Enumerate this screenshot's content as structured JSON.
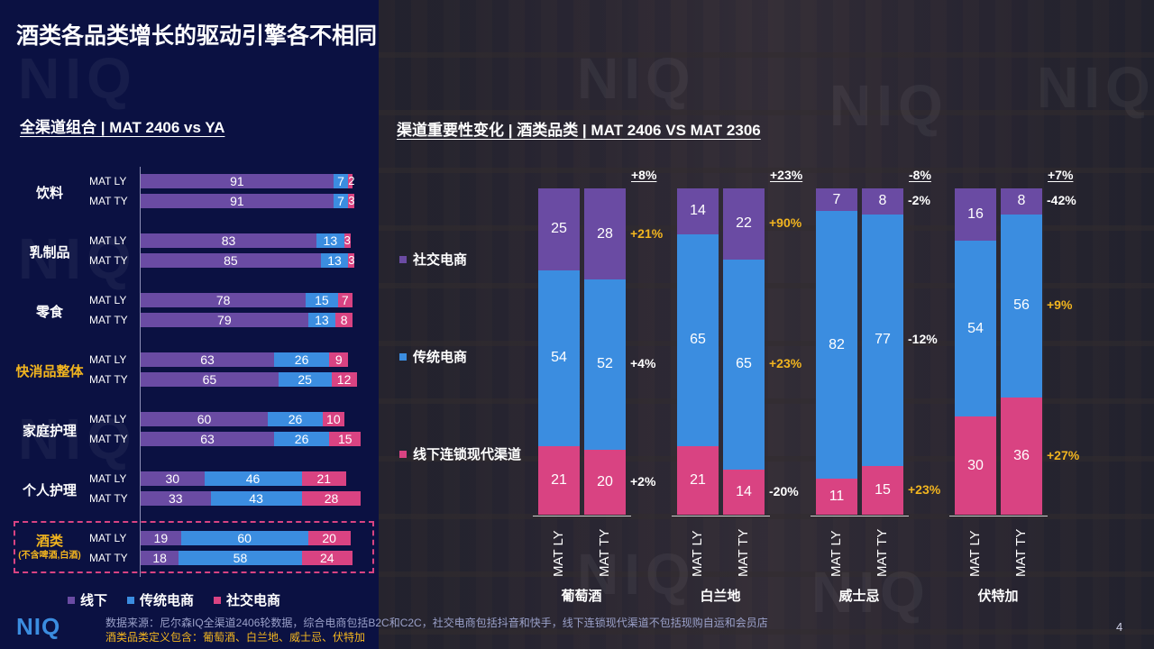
{
  "title": "酒类各品类增长的驱动引擎各不相同",
  "left_section_title": "全渠道组合 | MAT 2406 vs YA",
  "right_section_title": "渠道重要性变化 | 酒类品类 | MAT 2406 VS MAT 2306",
  "watermark": "NIQ",
  "logo": "NIQ",
  "page_number": "4",
  "source_note": "数据来源：尼尔森IQ全渠道2406轮数据，综合电商包括B2C和C2C，社交电商包括抖音和快手，线下连锁现代渠道不包括现购自运和会员店",
  "definition_note": "酒类品类定义包含：葡萄酒、白兰地、威士忌、伏特加",
  "colors": {
    "offline": "#6a4ba3",
    "traditional_ecom": "#3b8de0",
    "social_ecom": "#d94382",
    "highlight": "#f2b51f"
  },
  "left_legend": [
    {
      "label": "线下",
      "color": "#6a4ba3"
    },
    {
      "label": "传统电商",
      "color": "#3b8de0"
    },
    {
      "label": "社交电商",
      "color": "#d94382"
    }
  ],
  "right_legend": [
    {
      "label": "社交电商",
      "color": "#6a4ba3"
    },
    {
      "label": "传统电商",
      "color": "#3b8de0"
    },
    {
      "label": "线下连锁现代渠道",
      "color": "#d94382"
    }
  ],
  "chart_data": [
    {
      "type": "bar",
      "orientation": "horizontal-stacked",
      "title": "全渠道组合 | MAT 2406 vs YA",
      "series_names": [
        "线下",
        "传统电商",
        "社交电商"
      ],
      "categories": [
        {
          "name": "饮料",
          "highlight": false,
          "rows": [
            {
              "period": "MAT LY",
              "values": [
                91,
                7,
                2
              ]
            },
            {
              "period": "MAT TY",
              "values": [
                91,
                7,
                3
              ]
            }
          ]
        },
        {
          "name": "乳制品",
          "highlight": false,
          "rows": [
            {
              "period": "MAT LY",
              "values": [
                83,
                13,
                3
              ]
            },
            {
              "period": "MAT TY",
              "values": [
                85,
                13,
                3
              ]
            }
          ]
        },
        {
          "name": "零食",
          "highlight": false,
          "rows": [
            {
              "period": "MAT LY",
              "values": [
                78,
                15,
                7
              ]
            },
            {
              "period": "MAT TY",
              "values": [
                79,
                13,
                8
              ]
            }
          ]
        },
        {
          "name": "快消品整体",
          "highlight": true,
          "rows": [
            {
              "period": "MAT LY",
              "values": [
                63,
                26,
                9
              ]
            },
            {
              "period": "MAT TY",
              "values": [
                65,
                25,
                12
              ]
            }
          ]
        },
        {
          "name": "家庭护理",
          "highlight": false,
          "rows": [
            {
              "period": "MAT LY",
              "values": [
                60,
                26,
                10
              ]
            },
            {
              "period": "MAT TY",
              "values": [
                63,
                26,
                15
              ]
            }
          ]
        },
        {
          "name": "个人护理",
          "highlight": false,
          "rows": [
            {
              "period": "MAT LY",
              "values": [
                30,
                46,
                21
              ]
            },
            {
              "period": "MAT TY",
              "values": [
                33,
                43,
                28
              ]
            }
          ]
        },
        {
          "name": "酒类",
          "subname": "(不含啤酒,白酒)",
          "highlight": true,
          "rows": [
            {
              "period": "MAT LY",
              "values": [
                19,
                60,
                20
              ]
            },
            {
              "period": "MAT TY",
              "values": [
                18,
                58,
                24
              ]
            }
          ]
        }
      ]
    },
    {
      "type": "bar",
      "orientation": "vertical-stacked",
      "title": "渠道重要性变化 | 酒类品类 | MAT 2406 VS MAT 2306",
      "series_names": [
        "社交电商",
        "传统电商",
        "线下连锁现代渠道"
      ],
      "groups": [
        {
          "name": "葡萄酒",
          "total_change": "+8%",
          "bars": [
            {
              "period": "MAT LY",
              "values": [
                25,
                54,
                21
              ]
            },
            {
              "period": "MAT TY",
              "values": [
                28,
                52,
                20
              ]
            }
          ],
          "changes": [
            {
              "value": "+21%",
              "color": "yellow"
            },
            {
              "value": "+4%",
              "color": "white"
            },
            {
              "value": "+2%",
              "color": "white"
            }
          ]
        },
        {
          "name": "白兰地",
          "total_change": "+23%",
          "bars": [
            {
              "period": "MAT LY",
              "values": [
                14,
                65,
                21
              ]
            },
            {
              "period": "MAT TY",
              "values": [
                22,
                65,
                14
              ]
            }
          ],
          "changes": [
            {
              "value": "+90%",
              "color": "yellow"
            },
            {
              "value": "+23%",
              "color": "yellow"
            },
            {
              "value": "-20%",
              "color": "white"
            }
          ]
        },
        {
          "name": "威士忌",
          "total_change": "-8%",
          "bars": [
            {
              "period": "MAT LY",
              "values": [
                7,
                82,
                11
              ]
            },
            {
              "period": "MAT TY",
              "values": [
                8,
                77,
                15
              ]
            }
          ],
          "changes": [
            {
              "value": "-2%",
              "color": "white"
            },
            {
              "value": "-12%",
              "color": "white"
            },
            {
              "value": "+23%",
              "color": "yellow"
            }
          ]
        },
        {
          "name": "伏特加",
          "total_change": "+7%",
          "bars": [
            {
              "period": "MAT LY",
              "values": [
                16,
                54,
                30
              ]
            },
            {
              "period": "MAT TY",
              "values": [
                8,
                56,
                36
              ]
            }
          ],
          "changes": [
            {
              "value": "-42%",
              "color": "white"
            },
            {
              "value": "+9%",
              "color": "yellow"
            },
            {
              "value": "+27%",
              "color": "yellow"
            }
          ]
        }
      ]
    }
  ]
}
